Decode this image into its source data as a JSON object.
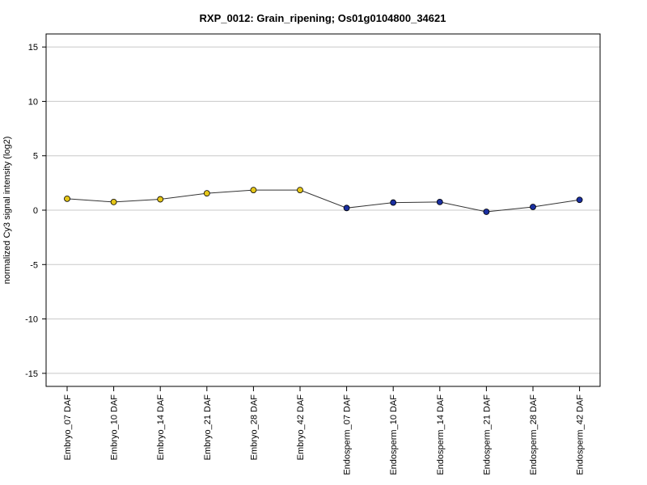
{
  "chart_data": {
    "type": "line",
    "title": "RXP_0012: Grain_ripening; Os01g0104800_34621",
    "xlabel": "",
    "ylabel": "normalized Cy3 signal intensity (log2)",
    "ylim": [
      -16.2,
      16.2
    ],
    "yticks": [
      15,
      10,
      5,
      0,
      -5,
      -10,
      -15
    ],
    "grid": true,
    "categories": [
      "Embryo_07 DAF",
      "Embryo_10 DAF",
      "Embryo_14 DAF",
      "Embryo_21 DAF",
      "Embryo_28 DAF",
      "Embryo_42 DAF",
      "Endosperm_07 DAF",
      "Endosperm_10 DAF",
      "Endosperm_14 DAF",
      "Endosperm_21 DAF",
      "Endosperm_28 DAF",
      "Endosperm_42 DAF"
    ],
    "values": [
      1.05,
      0.75,
      1.0,
      1.55,
      1.85,
      1.85,
      0.2,
      0.7,
      0.75,
      -0.15,
      0.3,
      0.95
    ],
    "point_colors": [
      "#e5c619",
      "#e5c619",
      "#e5c619",
      "#e5c619",
      "#e5c619",
      "#e5c619",
      "#1a2fa0",
      "#1a2fa0",
      "#1a2fa0",
      "#1a2fa0",
      "#1a2fa0",
      "#1a2fa0"
    ],
    "line_color": "#333333",
    "grid_color": "#c8c8c8"
  }
}
